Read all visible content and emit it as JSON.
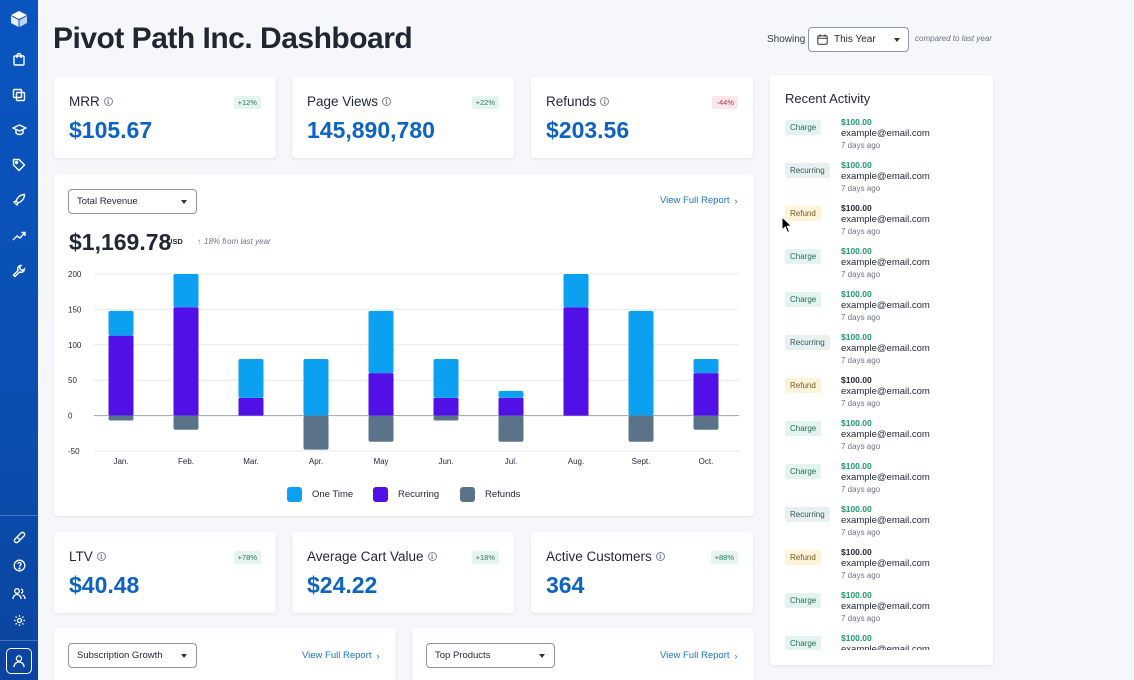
{
  "app": {
    "title": "Pivot Path Inc. Dashboard"
  },
  "header": {
    "showing_label": "Showing",
    "period": "This Year",
    "compared_text": "compared to last year"
  },
  "stats_top": [
    {
      "label": "MRR",
      "badge": "+12%",
      "value": "$105.67",
      "trend": "up"
    },
    {
      "label": "Page Views",
      "badge": "+22%",
      "value": "145,890,780",
      "trend": "up"
    },
    {
      "label": "Refunds",
      "badge": "-44%",
      "value": "$203.56",
      "trend": "down"
    }
  ],
  "stats_bottom": [
    {
      "label": "LTV",
      "badge": "+78%",
      "value": "$40.48",
      "trend": "up"
    },
    {
      "label": "Average Cart Value",
      "badge": "+18%",
      "value": "$24.22",
      "trend": "up"
    },
    {
      "label": "Active Customers",
      "badge": "+88%",
      "value": "364",
      "trend": "up"
    }
  ],
  "revenue": {
    "metric_select": "Total Revenue",
    "report_link": "View Full Report",
    "total": "$1,169.78",
    "currency": "USD",
    "change": "18% from last year"
  },
  "chart_data": {
    "type": "bar",
    "stacked": true,
    "categories": [
      "Jan.",
      "Feb.",
      "Mar.",
      "Apr.",
      "May",
      "Jun.",
      "Jul.",
      "Aug.",
      "Sept.",
      "Oct."
    ],
    "series": [
      {
        "name": "Recurring",
        "color": "#5111e6",
        "values": [
          113,
          153,
          25,
          0,
          60,
          25,
          25,
          153,
          0,
          60
        ]
      },
      {
        "name": "One Time",
        "color": "#0ca0f0",
        "values": [
          35,
          47,
          55,
          80,
          88,
          55,
          10,
          47,
          148,
          20
        ]
      },
      {
        "name": "Refunds",
        "color": "#5a7388",
        "values": [
          -7,
          -20,
          0,
          -48,
          -37,
          -7,
          -37,
          0,
          -37,
          -20
        ]
      }
    ],
    "yticks": [
      "200",
      "150",
      "100",
      "50",
      "0",
      "-50"
    ],
    "ylim": [
      -50,
      200
    ],
    "legend": [
      "One Time",
      "Recurring",
      "Refunds"
    ],
    "legend_position": "bottom"
  },
  "bottom_panels": [
    {
      "select": "Subscription Growth",
      "report_link": "View Full Report"
    },
    {
      "select": "Top Products",
      "report_link": "View Full Report"
    }
  ],
  "activity": {
    "title": "Recent Activity",
    "items": [
      {
        "type": "Charge",
        "amount": "$100.00",
        "email": "example@email.com",
        "time": "7 days ago"
      },
      {
        "type": "Recurring",
        "amount": "$100.00",
        "email": "example@email.com",
        "time": "7 days ago"
      },
      {
        "type": "Refund",
        "amount": "$100.00",
        "email": "example@email.com",
        "time": "7 days ago"
      },
      {
        "type": "Charge",
        "amount": "$100.00",
        "email": "example@email.com",
        "time": "7 days ago"
      },
      {
        "type": "Charge",
        "amount": "$100.00",
        "email": "example@email.com",
        "time": "7 days ago"
      },
      {
        "type": "Recurring",
        "amount": "$100.00",
        "email": "example@email.com",
        "time": "7 days ago"
      },
      {
        "type": "Refund",
        "amount": "$100.00",
        "email": "example@email.com",
        "time": "7 days ago"
      },
      {
        "type": "Charge",
        "amount": "$100.00",
        "email": "example@email.com",
        "time": "7 days ago"
      },
      {
        "type": "Charge",
        "amount": "$100.00",
        "email": "example@email.com",
        "time": "7 days ago"
      },
      {
        "type": "Recurring",
        "amount": "$100.00",
        "email": "example@email.com",
        "time": "7 days ago"
      },
      {
        "type": "Refund",
        "amount": "$100.00",
        "email": "example@email.com",
        "time": "7 days ago"
      },
      {
        "type": "Charge",
        "amount": "$100.00",
        "email": "example@email.com",
        "time": "7 days ago"
      },
      {
        "type": "Charge",
        "amount": "$100.00",
        "email": "example@email.com",
        "time": "7 days ago"
      }
    ]
  },
  "sidebar": {
    "icons": [
      "logo-box-icon",
      "shopping-bag-icon",
      "copy-icon",
      "graduation-cap-icon",
      "tag-icon",
      "rocket-icon",
      "trend-up-icon",
      "wrench-icon",
      "integrations-icon",
      "help-icon",
      "users-icon",
      "gear-icon",
      "user-icon"
    ]
  },
  "colors": {
    "accent": "#0d63c4",
    "sidebar": "#0a55c0",
    "positive": "#1f9a6b"
  }
}
